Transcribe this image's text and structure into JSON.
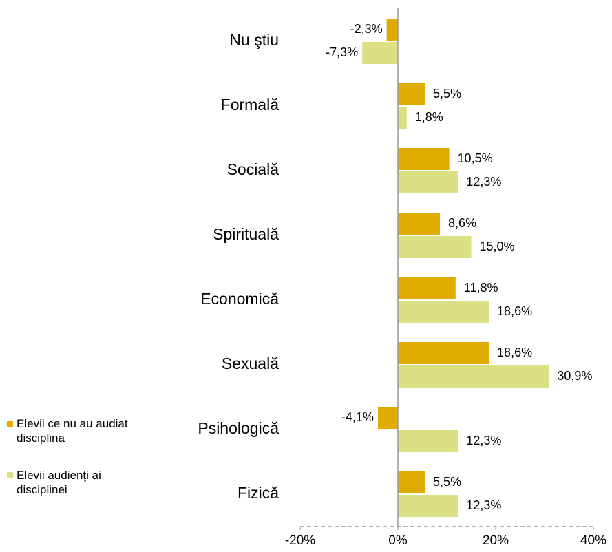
{
  "chart_data": {
    "type": "hbar",
    "categories": [
      "Nu ştiu",
      "Formală",
      "Socială",
      "Spirituală",
      "Economică",
      "Sexuală",
      "Psihologică",
      "Fizică"
    ],
    "series": [
      {
        "name": "Elevii ce nu au audiat disciplina",
        "color": "#e0ac00",
        "values": [
          -2.3,
          5.5,
          10.5,
          8.6,
          11.8,
          18.6,
          -4.1,
          5.5
        ],
        "value_labels": [
          "-2,3%",
          "5,5%",
          "10,5%",
          "8,6%",
          "11,8%",
          "18,6%",
          "-4,1%",
          "5,5%"
        ]
      },
      {
        "name": "Elevii audienţi ai disciplinei",
        "color": "#dce084",
        "values": [
          -7.3,
          1.8,
          12.3,
          15.0,
          18.6,
          30.9,
          12.3,
          12.3
        ],
        "value_labels": [
          "-7,3%",
          "1,8%",
          "12,3%",
          "15,0%",
          "18,6%",
          "30,9%",
          "12,3%",
          "12,3%"
        ]
      }
    ],
    "xlim": [
      -20,
      40
    ],
    "xticks": [
      {
        "value": -20,
        "label": "-20%"
      },
      {
        "value": 0,
        "label": "0%"
      },
      {
        "value": 20,
        "label": "20%"
      },
      {
        "value": 40,
        "label": "40%"
      }
    ],
    "legend": "left"
  }
}
